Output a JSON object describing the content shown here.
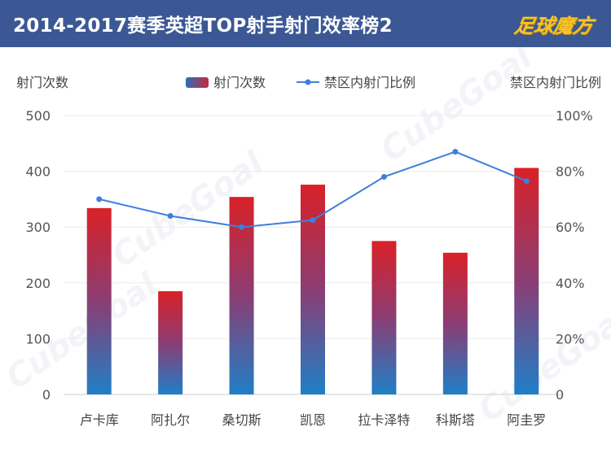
{
  "header": {
    "title": "2014-2017赛季英超TOP射手射门效率榜2",
    "logo": "足球魔方"
  },
  "colors": {
    "header_bg": "#3b5894",
    "bar_top": "#d92127",
    "bar_bottom": "#1f7fc7",
    "line": "#3f7fdc"
  },
  "chart_data": {
    "type": "bar",
    "categories": [
      "卢卡库",
      "阿扎尔",
      "桑切斯",
      "凯恩",
      "拉卡泽特",
      "科斯塔",
      "阿圭罗"
    ],
    "series": [
      {
        "name": "射门次数",
        "type": "bar",
        "axis": "left",
        "values": [
          334,
          185,
          354,
          376,
          275,
          254,
          406
        ]
      },
      {
        "name": "禁区内射门比例",
        "type": "line",
        "axis": "right",
        "values": [
          70,
          64,
          60,
          62.5,
          78,
          87,
          76.5
        ]
      }
    ],
    "left_axis": {
      "label": "射门次数",
      "range": [
        0,
        500
      ],
      "ticks": [
        "0",
        "100",
        "200",
        "300",
        "400",
        "500"
      ]
    },
    "right_axis": {
      "label": "禁区内射门比例",
      "range": [
        0,
        100
      ],
      "ticks": [
        "0",
        "20%",
        "40%",
        "60%",
        "80%",
        "100%"
      ]
    },
    "legend": [
      "射门次数",
      "禁区内射门比例"
    ],
    "watermark": "CubeGoal"
  }
}
